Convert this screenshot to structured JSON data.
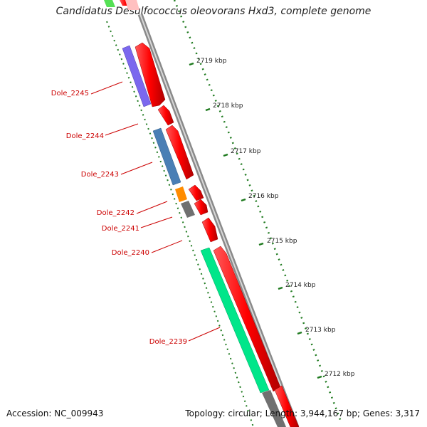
{
  "title": "Candidatus Desulfococcus oleovorans Hxd3, complete genome",
  "footer": {
    "accession": "Accession: NC_009943",
    "summary": "Topology: circular; Length: 3,944,167 bp; Genes: 3,317"
  },
  "colors": {
    "forward_gene": "#ff0000",
    "backbone": "#8c8c8c",
    "tick_green": "#1f7a1f",
    "label_red": "#cc0000",
    "gene_purple": "#7b68ee",
    "gene_steelblue": "#4a7fb5",
    "gene_orange": "#ff8c00",
    "gene_gray": "#707070",
    "gene_springgreen": "#00e68a",
    "gene_lightgreen": "#55e055",
    "gene_pink": "#ffc0c0"
  },
  "scale_ticks": [
    "2719 kbp",
    "2718 kbp",
    "2717 kbp",
    "2716 kbp",
    "2715 kbp",
    "2714 kbp",
    "2713 kbp",
    "2712 kbp"
  ],
  "gene_labels": [
    "Dole_2245",
    "Dole_2244",
    "Dole_2243",
    "Dole_2242",
    "Dole_2241",
    "Dole_2240",
    "Dole_2239"
  ]
}
